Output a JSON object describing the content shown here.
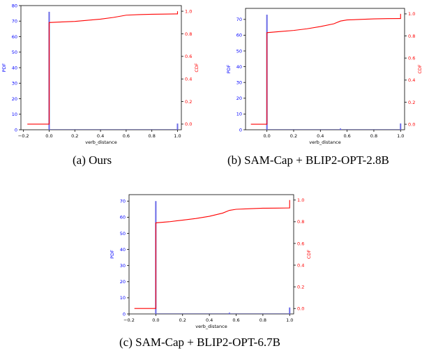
{
  "figure": {
    "captions": [
      "(a) Ours",
      "(b) SAM-Cap + BLIP2-OPT-2.8B",
      "(c) SAM-Cap + BLIP2-OPT-6.7B"
    ]
  },
  "colors": {
    "pdf": "#0000ff",
    "pdf_bar": "#6a6ae6",
    "cdf": "#ff0000",
    "axis": "#000000"
  },
  "chart_data": [
    {
      "type": "line",
      "caption": "(a) Ours",
      "xlabel": "verb_distance",
      "ylabel_left": "PDF",
      "ylabel_right": "CDF",
      "xlim": [
        -0.22,
        1.03
      ],
      "ylim_left": [
        0,
        80
      ],
      "ylim_right": [
        -0.05,
        1.05
      ],
      "xticks": [
        -0.2,
        0.0,
        0.2,
        0.4,
        0.6,
        0.8,
        1.0
      ],
      "yticks_left": [
        0,
        10,
        20,
        30,
        40,
        50,
        60,
        70,
        80
      ],
      "yticks_right": [
        0.0,
        0.2,
        0.4,
        0.6,
        0.8,
        1.0
      ],
      "pdf_bars": [
        {
          "x": 0.0,
          "y": 76
        },
        {
          "x": 1.0,
          "y": 4
        }
      ],
      "cdf": [
        [
          -0.17,
          0.0
        ],
        [
          0.0,
          0.0
        ],
        [
          0.0,
          0.9
        ],
        [
          0.1,
          0.905
        ],
        [
          0.2,
          0.91
        ],
        [
          0.3,
          0.92
        ],
        [
          0.4,
          0.93
        ],
        [
          0.5,
          0.945
        ],
        [
          0.55,
          0.955
        ],
        [
          0.6,
          0.965
        ],
        [
          0.7,
          0.97
        ],
        [
          0.8,
          0.973
        ],
        [
          0.9,
          0.975
        ],
        [
          0.99,
          0.976
        ],
        [
          1.0,
          0.976
        ],
        [
          1.0,
          1.0
        ]
      ]
    },
    {
      "type": "line",
      "caption": "(b) SAM-Cap + BLIP2-OPT-2.8B",
      "xlabel": "verb_distance",
      "ylabel_left": "PDF",
      "ylabel_right": "CDF",
      "xlim": [
        -0.16,
        1.03
      ],
      "ylim_left": [
        0,
        77
      ],
      "ylim_right": [
        -0.05,
        1.05
      ],
      "xticks": [
        0.0,
        0.2,
        0.4,
        0.6,
        0.8,
        1.0
      ],
      "yticks_left": [
        0,
        10,
        20,
        30,
        40,
        50,
        60,
        70
      ],
      "yticks_right": [
        0.0,
        0.2,
        0.4,
        0.6,
        0.8,
        1.0
      ],
      "pdf_bars": [
        {
          "x": 0.0,
          "y": 73
        },
        {
          "x": 0.55,
          "y": 0.8
        },
        {
          "x": 1.0,
          "y": 4
        }
      ],
      "cdf": [
        [
          -0.12,
          0.0
        ],
        [
          0.0,
          0.0
        ],
        [
          0.0,
          0.83
        ],
        [
          0.1,
          0.84
        ],
        [
          0.2,
          0.85
        ],
        [
          0.3,
          0.865
        ],
        [
          0.4,
          0.885
        ],
        [
          0.5,
          0.91
        ],
        [
          0.55,
          0.935
        ],
        [
          0.6,
          0.945
        ],
        [
          0.7,
          0.95
        ],
        [
          0.8,
          0.955
        ],
        [
          0.9,
          0.957
        ],
        [
          0.99,
          0.958
        ],
        [
          1.0,
          0.958
        ],
        [
          1.0,
          1.0
        ]
      ]
    },
    {
      "type": "line",
      "caption": "(c) SAM-Cap + BLIP2-OPT-6.7B",
      "xlabel": "verb_distance",
      "ylabel_left": "PDF",
      "ylabel_right": "CDF",
      "xlim": [
        -0.2,
        1.03
      ],
      "ylim_left": [
        0,
        74
      ],
      "ylim_right": [
        -0.05,
        1.05
      ],
      "xticks": [
        -0.2,
        0.0,
        0.2,
        0.4,
        0.6,
        0.8,
        1.0
      ],
      "yticks_left": [
        0,
        10,
        20,
        30,
        40,
        50,
        60,
        70
      ],
      "yticks_right": [
        0.0,
        0.2,
        0.4,
        0.6,
        0.8,
        1.0
      ],
      "pdf_bars": [
        {
          "x": 0.0,
          "y": 70
        },
        {
          "x": 0.55,
          "y": 0.8
        },
        {
          "x": 1.0,
          "y": 4
        }
      ],
      "cdf": [
        [
          -0.16,
          0.0
        ],
        [
          0.0,
          0.0
        ],
        [
          0.0,
          0.79
        ],
        [
          0.1,
          0.8
        ],
        [
          0.2,
          0.815
        ],
        [
          0.3,
          0.83
        ],
        [
          0.4,
          0.85
        ],
        [
          0.5,
          0.88
        ],
        [
          0.55,
          0.905
        ],
        [
          0.6,
          0.915
        ],
        [
          0.7,
          0.92
        ],
        [
          0.8,
          0.925
        ],
        [
          0.9,
          0.926
        ],
        [
          0.99,
          0.927
        ],
        [
          1.0,
          0.927
        ],
        [
          1.0,
          1.0
        ]
      ]
    }
  ]
}
